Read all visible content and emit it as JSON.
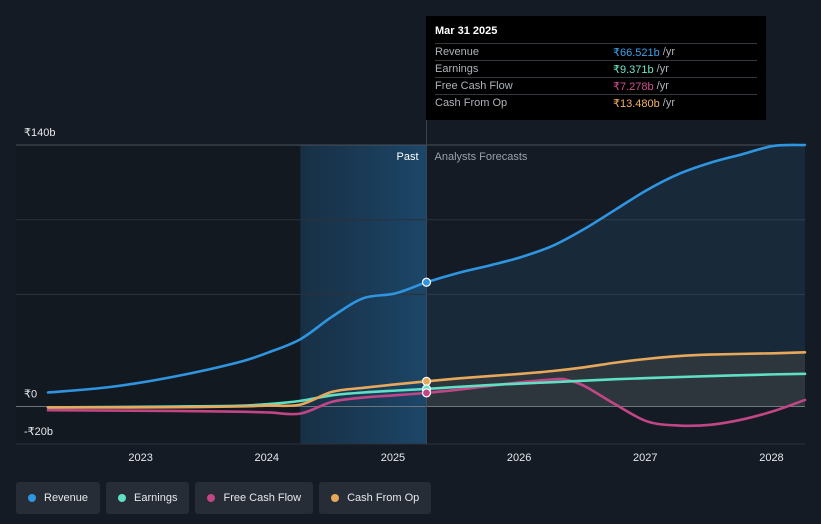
{
  "colors": {
    "revenue": "#2f95e0",
    "earnings": "#5fe0c4",
    "fcf": "#c24685",
    "cfo": "#e8a85c",
    "background": "#151b24",
    "grid": "#2a313b"
  },
  "tooltip": {
    "date": "Mar 31 2025",
    "unit": "/yr",
    "rows": [
      {
        "label": "Revenue",
        "value": "₹66.521b",
        "color": "#3fa0ea"
      },
      {
        "label": "Earnings",
        "value": "₹9.371b",
        "color": "#6fe5cb"
      },
      {
        "label": "Free Cash Flow",
        "value": "₹7.278b",
        "color": "#d14e91"
      },
      {
        "label": "Cash From Op",
        "value": "₹13.480b",
        "color": "#f0b366"
      }
    ]
  },
  "labels": {
    "past": "Past",
    "forecast": "Analysts Forecasts"
  },
  "legend": [
    {
      "label": "Revenue",
      "color": "#2f95e0"
    },
    {
      "label": "Earnings",
      "color": "#5fe0c4"
    },
    {
      "label": "Free Cash Flow",
      "color": "#c24685"
    },
    {
      "label": "Cash From Op",
      "color": "#e8a85c"
    }
  ],
  "chart_data": {
    "type": "line",
    "title": "",
    "ylabel": "",
    "xlabel": "",
    "y_ticks": [
      {
        "value": 140,
        "label": "₹140b"
      },
      {
        "value": 0,
        "label": "₹0"
      },
      {
        "value": -20,
        "label": "-₹20b"
      }
    ],
    "x_ticks": [
      {
        "value": 2023,
        "label": "2023"
      },
      {
        "value": 2024,
        "label": "2024"
      },
      {
        "value": 2025,
        "label": "2025"
      },
      {
        "value": 2026,
        "label": "2026"
      },
      {
        "value": 2027,
        "label": "2027"
      },
      {
        "value": 2028,
        "label": "2028"
      }
    ],
    "xlim": [
      2022.25,
      2028.25
    ],
    "ylim": [
      -20,
      140
    ],
    "past_start": 2024.25,
    "divider": 2025.25,
    "highlight": {
      "x": 2025.25,
      "values": {
        "revenue": 66.521,
        "earnings": 9.371,
        "fcf": 7.278,
        "cfo": 13.48
      }
    },
    "series": [
      {
        "name": "Revenue",
        "key": "revenue",
        "points": [
          [
            2022.25,
            7.5
          ],
          [
            2022.75,
            10.5
          ],
          [
            2023.25,
            16
          ],
          [
            2023.75,
            23.5
          ],
          [
            2024.0,
            29
          ],
          [
            2024.25,
            36
          ],
          [
            2024.5,
            48
          ],
          [
            2024.75,
            58
          ],
          [
            2025.0,
            60.5
          ],
          [
            2025.25,
            66.5
          ],
          [
            2025.5,
            71.5
          ],
          [
            2025.75,
            75.5
          ],
          [
            2026.0,
            80
          ],
          [
            2026.25,
            86
          ],
          [
            2026.5,
            95
          ],
          [
            2026.75,
            105.5
          ],
          [
            2027.0,
            116
          ],
          [
            2027.25,
            124.5
          ],
          [
            2027.5,
            130.5
          ],
          [
            2027.75,
            135
          ],
          [
            2028.0,
            139.5
          ],
          [
            2028.25,
            140
          ]
        ]
      },
      {
        "name": "Earnings",
        "key": "earnings",
        "points": [
          [
            2022.25,
            -0.5
          ],
          [
            2022.75,
            -0.3
          ],
          [
            2023.25,
            0
          ],
          [
            2023.75,
            0.4
          ],
          [
            2024.0,
            1.3
          ],
          [
            2024.25,
            3
          ],
          [
            2024.5,
            6
          ],
          [
            2024.75,
            7.5
          ],
          [
            2025.0,
            8.5
          ],
          [
            2025.25,
            9.4
          ],
          [
            2025.5,
            10.5
          ],
          [
            2025.75,
            11.5
          ],
          [
            2026.0,
            12.3
          ],
          [
            2026.25,
            13
          ],
          [
            2026.5,
            13.8
          ],
          [
            2026.75,
            14.6
          ],
          [
            2027.0,
            15.2
          ],
          [
            2027.5,
            16.3
          ],
          [
            2028.0,
            17.2
          ],
          [
            2028.25,
            17.5
          ]
        ]
      },
      {
        "name": "Free Cash Flow",
        "key": "fcf",
        "points": [
          [
            2022.25,
            -2
          ],
          [
            2022.75,
            -2.2
          ],
          [
            2023.25,
            -2.4
          ],
          [
            2023.75,
            -2.8
          ],
          [
            2024.0,
            -3.2
          ],
          [
            2024.25,
            -3.8
          ],
          [
            2024.5,
            2.5
          ],
          [
            2024.75,
            4.8
          ],
          [
            2025.0,
            6
          ],
          [
            2025.25,
            7.3
          ],
          [
            2025.5,
            9
          ],
          [
            2025.75,
            11
          ],
          [
            2026.0,
            13
          ],
          [
            2026.25,
            14.5
          ],
          [
            2026.35,
            14.5
          ],
          [
            2026.5,
            11
          ],
          [
            2026.75,
            1
          ],
          [
            2027.0,
            -8
          ],
          [
            2027.25,
            -10.2
          ],
          [
            2027.5,
            -9.8
          ],
          [
            2027.75,
            -7
          ],
          [
            2028.0,
            -2.5
          ],
          [
            2028.25,
            3.5
          ]
        ]
      },
      {
        "name": "Cash From Op",
        "key": "cfo",
        "points": [
          [
            2022.25,
            -0.5
          ],
          [
            2022.75,
            -0.5
          ],
          [
            2023.25,
            -0.4
          ],
          [
            2023.75,
            0
          ],
          [
            2024.0,
            0.5
          ],
          [
            2024.25,
            1
          ],
          [
            2024.5,
            7.8
          ],
          [
            2024.75,
            10
          ],
          [
            2025.0,
            11.8
          ],
          [
            2025.25,
            13.5
          ],
          [
            2025.5,
            15
          ],
          [
            2025.75,
            16.3
          ],
          [
            2026.0,
            17.5
          ],
          [
            2026.25,
            19
          ],
          [
            2026.5,
            21
          ],
          [
            2026.75,
            23.5
          ],
          [
            2027.0,
            25.5
          ],
          [
            2027.25,
            27
          ],
          [
            2027.5,
            27.8
          ],
          [
            2028.0,
            28.5
          ],
          [
            2028.25,
            29
          ]
        ]
      }
    ]
  }
}
